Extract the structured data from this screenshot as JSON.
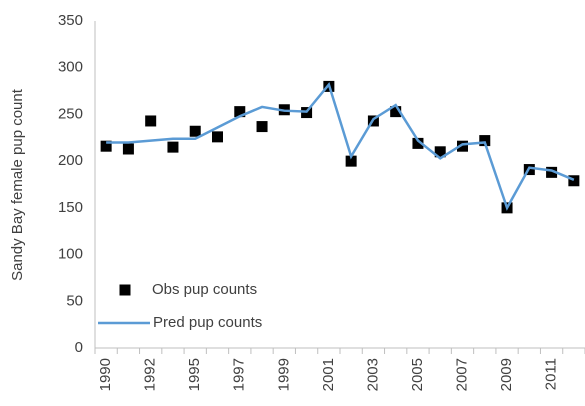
{
  "chart_data": {
    "type": "line",
    "ylabel": "Sandy Bay female pup count",
    "categories": [
      "1990",
      null,
      "1992",
      null,
      "1995",
      null,
      "1997",
      null,
      "1999",
      null,
      "2001",
      null,
      "2003",
      null,
      "2005",
      null,
      "2007",
      null,
      "2009",
      null,
      "2011",
      null
    ],
    "series": [
      {
        "name": "Obs pup counts",
        "color": "#000000",
        "mode": "markers",
        "values": [
          216,
          213,
          243,
          215,
          232,
          226,
          253,
          237,
          255,
          252,
          280,
          200,
          243,
          253,
          219,
          210,
          216,
          222,
          150,
          191,
          188,
          179
        ]
      },
      {
        "name": "Pred pup counts",
        "color": "#5b9bd5",
        "mode": "line",
        "values": [
          220,
          220,
          222,
          224,
          224,
          236,
          248,
          258,
          254,
          253,
          282,
          205,
          245,
          260,
          222,
          203,
          218,
          220,
          150,
          193,
          190,
          180
        ]
      }
    ],
    "ylim": [
      0,
      350
    ],
    "yticks": [
      0,
      50,
      100,
      150,
      200,
      250,
      300,
      350
    ],
    "legend": "lower-left"
  }
}
